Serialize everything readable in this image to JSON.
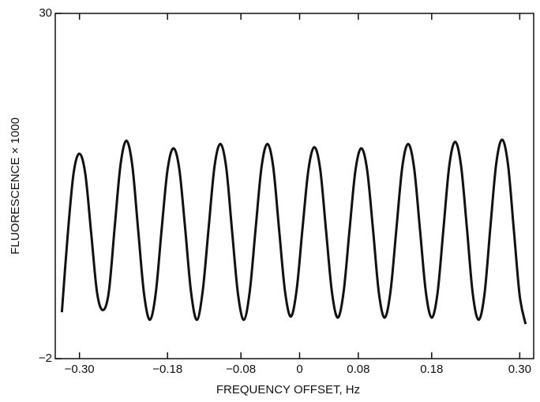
{
  "chart_data": {
    "type": "line",
    "x_label": "FREQUENCY OFFSET, Hz",
    "y_label": "FLUORESCENCE × 1000",
    "xlim": [
      -0.333,
      0.319
    ],
    "ylim": [
      -2,
      30
    ],
    "xticks": [
      {
        "value": -0.3,
        "label": "−0.30"
      },
      {
        "value": -0.18,
        "label": "−0.18"
      },
      {
        "value": -0.08,
        "label": "−0.08"
      },
      0,
      0.08,
      0.18,
      {
        "value": 0.3,
        "label": "0.30"
      }
    ],
    "yticks": [
      {
        "value": -2,
        "label": "−2"
      },
      30
    ],
    "x": [
      -0.324,
      -0.316,
      -0.308,
      -0.3,
      -0.292,
      -0.284,
      -0.276,
      -0.268,
      -0.26,
      -0.252,
      -0.244,
      -0.236,
      -0.228,
      -0.22,
      -0.212,
      -0.204,
      -0.196,
      -0.188,
      -0.18,
      -0.172,
      -0.164,
      -0.156,
      -0.148,
      -0.14,
      -0.132,
      -0.124,
      -0.116,
      -0.108,
      -0.1,
      -0.092,
      -0.084,
      -0.076,
      -0.068,
      -0.06,
      -0.052,
      -0.044,
      -0.036,
      -0.028,
      -0.02,
      -0.012,
      -0.004,
      0.004,
      0.012,
      0.02,
      0.028,
      0.036,
      0.044,
      0.052,
      0.06,
      0.068,
      0.076,
      0.084,
      0.092,
      0.1,
      0.108,
      0.116,
      0.124,
      0.132,
      0.14,
      0.148,
      0.156,
      0.164,
      0.172,
      0.18,
      0.188,
      0.196,
      0.204,
      0.212,
      0.22,
      0.228,
      0.236,
      0.244,
      0.252,
      0.26,
      0.268,
      0.276,
      0.284,
      0.292,
      0.3,
      0.308
    ],
    "series": [
      {
        "color": "#111111",
        "values": [
          2.3,
          9.5,
          15.2,
          17.0,
          15.1,
          9.6,
          4.1,
          2.5,
          4.2,
          10.2,
          16.0,
          18.2,
          15.9,
          9.9,
          4.0,
          1.6,
          4.1,
          10.0,
          15.5,
          17.5,
          15.6,
          10.1,
          4.2,
          1.6,
          4.3,
          10.1,
          15.8,
          17.9,
          15.7,
          9.8,
          4.0,
          1.6,
          4.2,
          10.0,
          15.7,
          17.9,
          15.8,
          10.0,
          4.3,
          1.9,
          4.4,
          10.1,
          15.5,
          17.6,
          15.6,
          9.9,
          4.2,
          1.8,
          4.2,
          9.9,
          15.4,
          17.5,
          15.5,
          10.0,
          4.1,
          1.8,
          4.3,
          10.1,
          15.8,
          17.9,
          15.7,
          10.0,
          4.2,
          1.8,
          4.1,
          10.0,
          15.9,
          18.1,
          15.9,
          10.1,
          4.0,
          1.6,
          4.0,
          10.2,
          16.1,
          18.3,
          16.0,
          9.9,
          3.8,
          1.2
        ]
      }
    ]
  }
}
